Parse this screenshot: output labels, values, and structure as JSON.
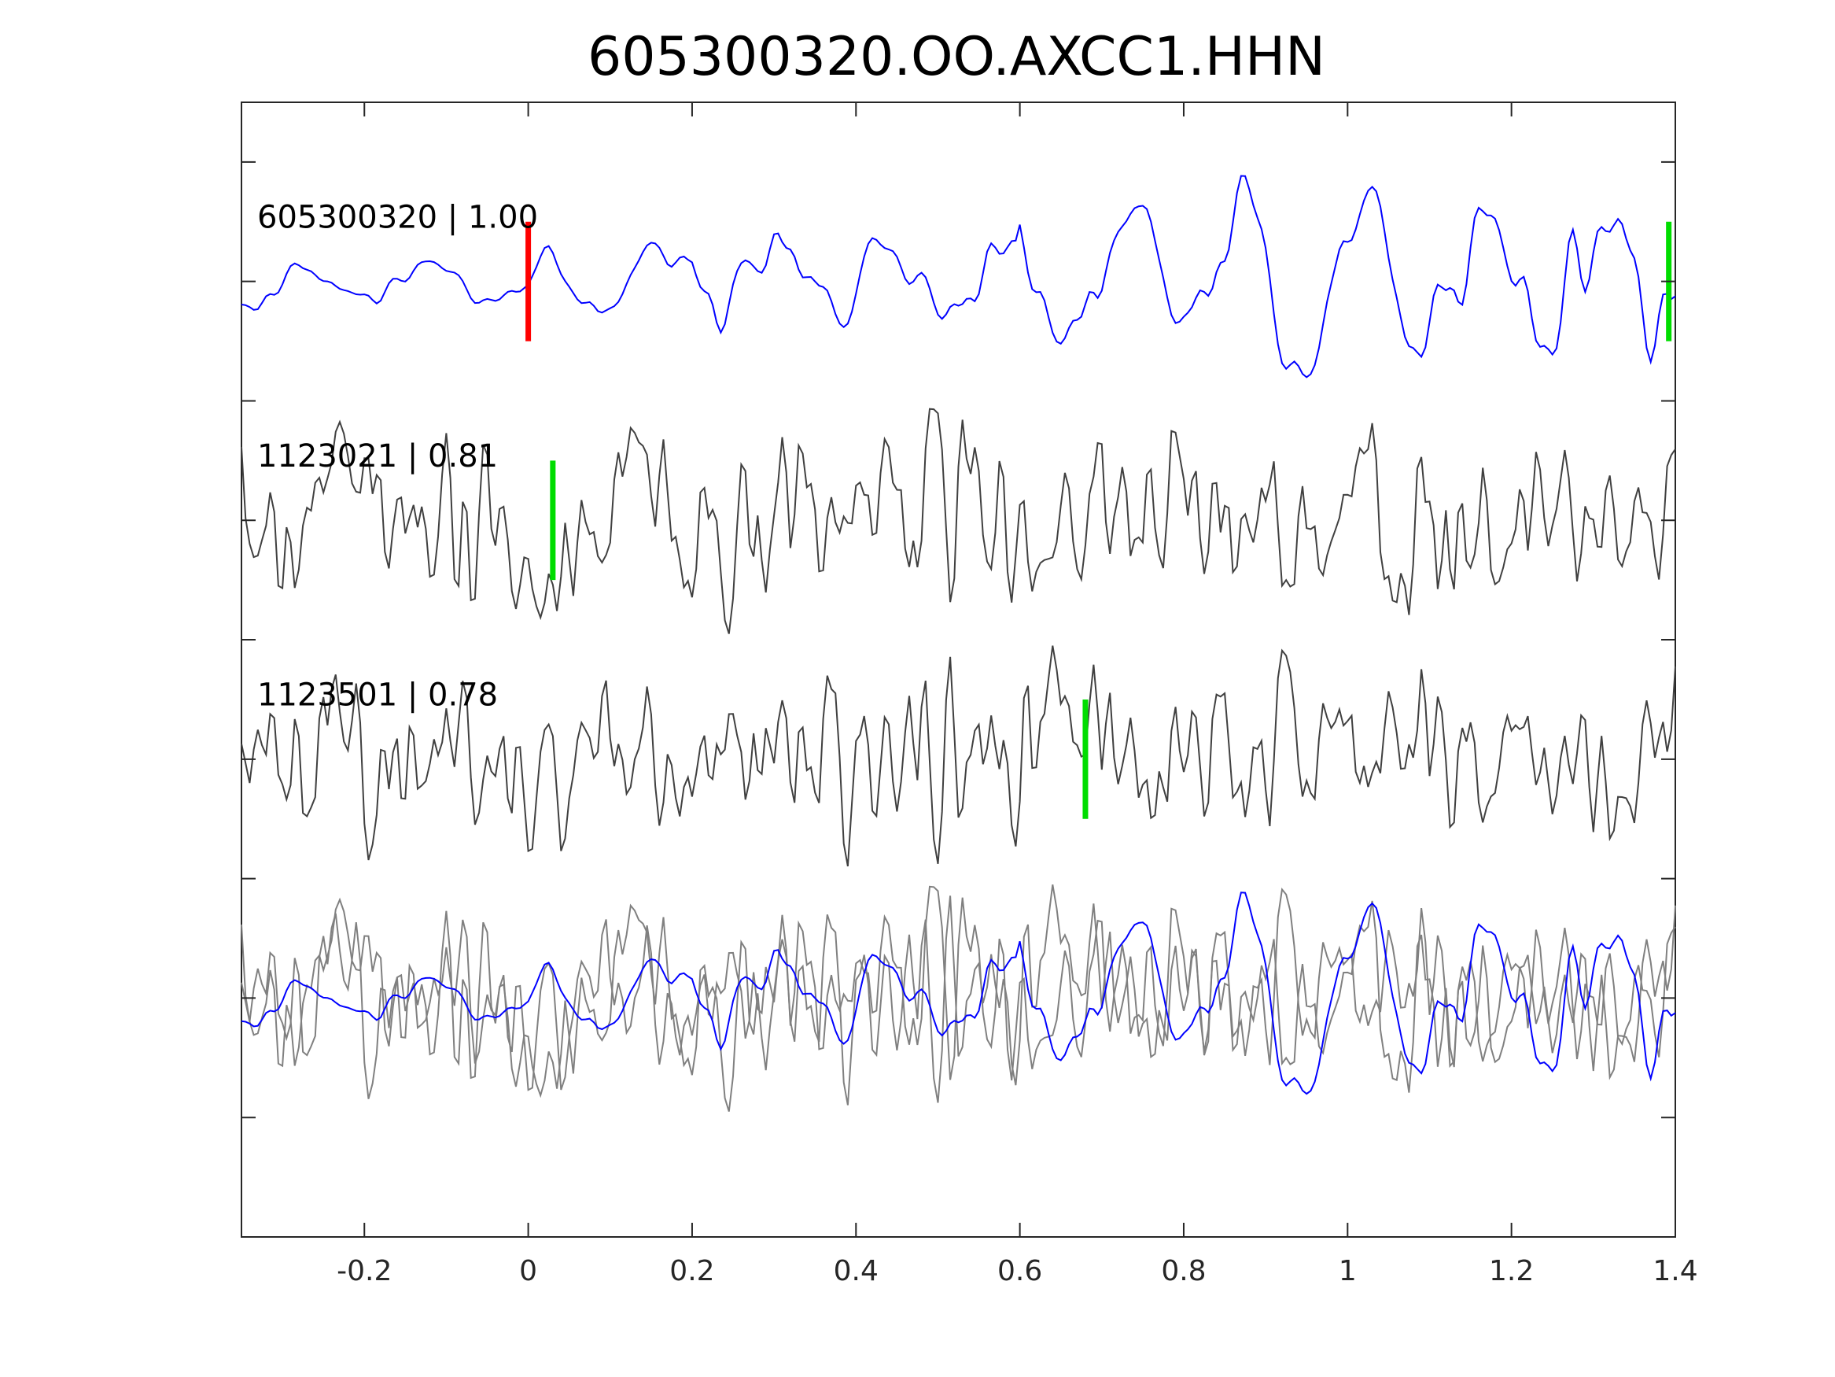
{
  "chart_data": {
    "type": "line",
    "title": "605300320.OO.AXCC1.HHN",
    "xlabel": "",
    "ylabel": "",
    "xlim": [
      -0.35,
      1.4
    ],
    "x_ticks": [
      -0.2,
      0,
      0.2,
      0.4,
      0.6,
      0.8,
      1,
      1.2,
      1.4
    ],
    "x_tick_labels": [
      "-0.2",
      "0",
      "0.2",
      "0.4",
      "0.6",
      "0.8",
      "1",
      "1.2",
      "1.4"
    ],
    "ylim": [
      -0.5,
      9.0
    ],
    "y_ticks": [
      0.5,
      1.5,
      2.5,
      3.5,
      4.5,
      5.5,
      6.5,
      7.5,
      8.5
    ],
    "y_tick_labels_visible": false,
    "grid": false,
    "sample_step": 0.005,
    "traces": [
      {
        "label": "605300320 | 1.00",
        "offset": 7.5,
        "color": "#0000ff",
        "picks": [
          {
            "x": 0.0,
            "color": "#ff0000"
          },
          {
            "x": 1.392,
            "color": "#00dd00"
          }
        ]
      },
      {
        "label": "1123021 | 0.81",
        "offset": 5.5,
        "color": "#404040",
        "picks": [
          {
            "x": 0.03,
            "color": "#00dd00"
          }
        ]
      },
      {
        "label": "1123501 | 0.78",
        "offset": 3.5,
        "color": "#404040",
        "picks": [
          {
            "x": 0.68,
            "color": "#00dd00"
          }
        ]
      }
    ],
    "stack": {
      "offset": 1.5,
      "background_color": "#808080",
      "foreground_color": "#0000ff"
    }
  }
}
